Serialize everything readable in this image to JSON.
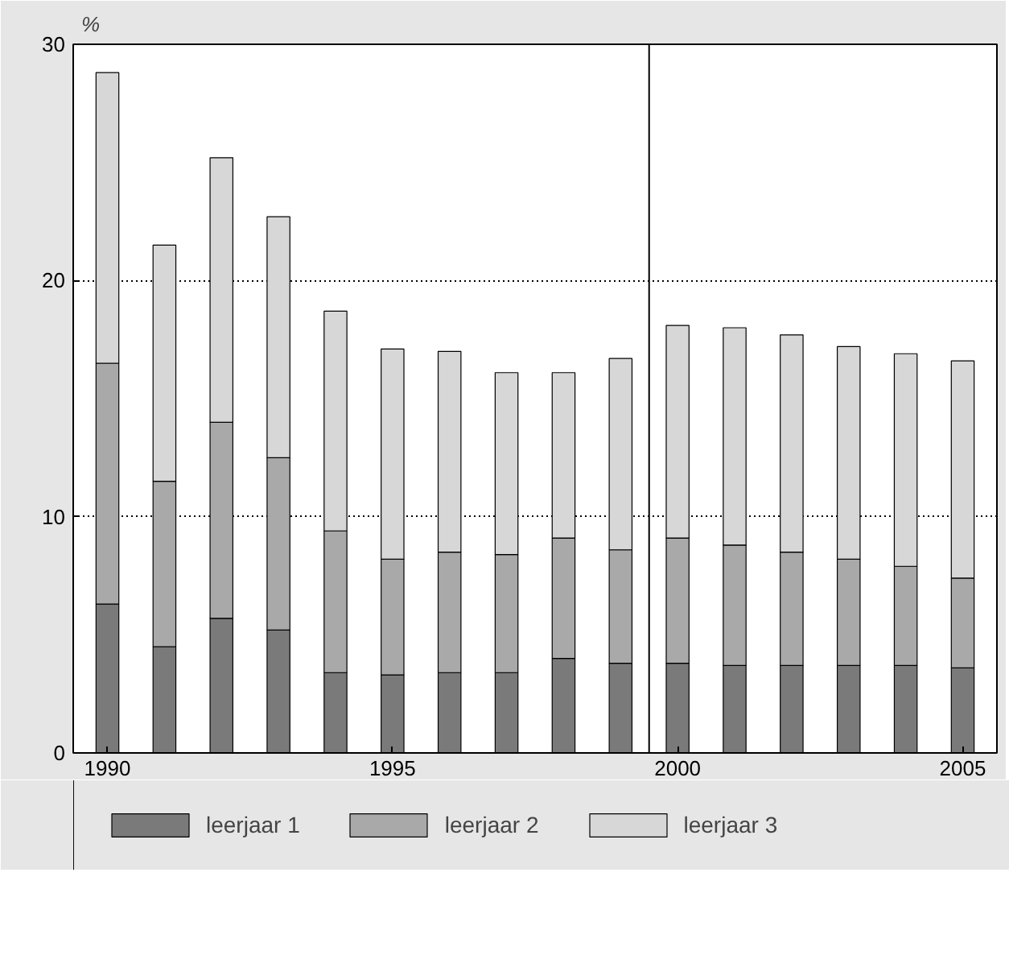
{
  "chart_data": {
    "type": "bar",
    "stacked": true,
    "ylabel": "%",
    "x": [
      1990,
      1991,
      1992,
      1993,
      1994,
      1995,
      1996,
      1997,
      1998,
      1999,
      2000,
      2001,
      2002,
      2003,
      2004,
      2005
    ],
    "series": [
      {
        "name": "leerjaar 1",
        "color": "#7a7a7a",
        "values": [
          6.3,
          4.5,
          5.7,
          5.2,
          3.4,
          3.3,
          3.4,
          3.4,
          4.0,
          3.8,
          3.8,
          3.7,
          3.7,
          3.7,
          3.7,
          3.6
        ]
      },
      {
        "name": "leerjaar 2",
        "color": "#a9a9a9",
        "values": [
          10.2,
          7.0,
          8.3,
          7.3,
          6.0,
          4.9,
          5.1,
          5.0,
          5.1,
          4.8,
          5.3,
          5.1,
          4.8,
          4.5,
          4.2,
          3.8
        ]
      },
      {
        "name": "leerjaar 3",
        "color": "#d7d7d7",
        "values": [
          12.3,
          10.0,
          11.2,
          10.2,
          9.3,
          8.9,
          8.5,
          7.7,
          7.0,
          8.1,
          9.0,
          9.2,
          9.2,
          9.0,
          9.0,
          9.2
        ]
      }
    ],
    "xlim": [
      1989.4,
      2005.6
    ],
    "xticks": [
      1990,
      1995,
      2000,
      2005
    ],
    "ylim": [
      0,
      30
    ],
    "yticks": [
      0,
      10,
      20,
      30
    ],
    "grid": "y",
    "legend": "bottom",
    "ref_lines": [
      {
        "axis": "x",
        "value": 1999.5,
        "color": "#000000"
      }
    ]
  }
}
